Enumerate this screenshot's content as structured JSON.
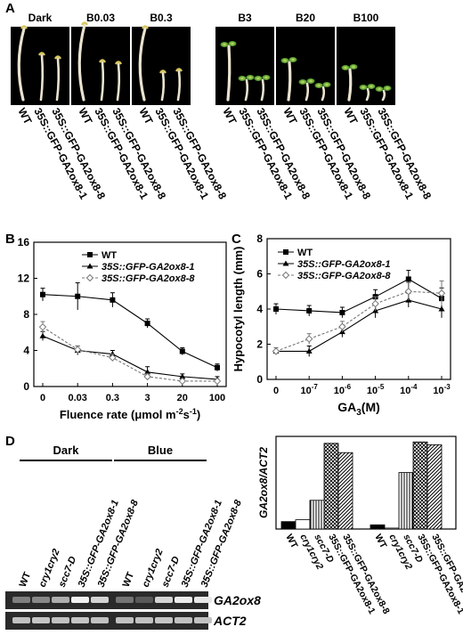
{
  "figure": {
    "panel_letters": {
      "a": "A",
      "b": "B",
      "c": "C",
      "d": "D"
    }
  },
  "panel_a": {
    "conditions": [
      "Dark",
      "B0.03",
      "B0.3",
      "B3",
      "B20",
      "B100"
    ],
    "genotypes": [
      "WT",
      "35S::GFP-GA2ox8-1",
      "35S::GFP-GA2ox8-8"
    ]
  },
  "chart_data": [
    {
      "type": "line",
      "panel": "B",
      "categories": [
        "0",
        "0.03",
        "0.3",
        "3",
        "20",
        "100"
      ],
      "xlabel": "Fluence rate (μmol m-2s-1)",
      "ylabel": "",
      "ylim": [
        0,
        16
      ],
      "yticks": [
        "0",
        "4",
        "8",
        "12",
        "16"
      ],
      "legend_position": "top-right",
      "series": [
        {
          "name": "WT",
          "marker": "filled-square",
          "values": [
            10.2,
            10.0,
            9.6,
            7.0,
            3.9,
            2.1
          ],
          "errors": [
            0.7,
            1.5,
            0.8,
            0.5,
            0.4,
            0.4
          ]
        },
        {
          "name": "35S::GFP-GA2ox8-1",
          "marker": "filled-triangle",
          "values": [
            5.6,
            4.0,
            3.6,
            1.6,
            1.1,
            0.8
          ],
          "errors": [
            0.5,
            0.5,
            0.4,
            0.6,
            0.3,
            0.3
          ]
        },
        {
          "name": "35S::GFP-GA2ox8-8",
          "marker": "open-diamond",
          "values": [
            6.6,
            4.1,
            3.2,
            1.1,
            0.6,
            0.6
          ],
          "errors": [
            0.6,
            0.4,
            0.4,
            0.3,
            0.2,
            0.2
          ]
        }
      ]
    },
    {
      "type": "line",
      "panel": "C",
      "categories": [
        "0",
        "10-7",
        "10-6",
        "10-5",
        "10-4",
        "10-3"
      ],
      "xlabel": "GA3(M)",
      "ylabel": "Hypocotyl length (mm)",
      "ylim": [
        0,
        8
      ],
      "yticks": [
        "0",
        "2",
        "4",
        "6",
        "8"
      ],
      "legend_position": "top-left",
      "series": [
        {
          "name": "WT",
          "marker": "filled-square",
          "values": [
            4.0,
            3.9,
            3.8,
            4.7,
            5.7,
            4.6
          ],
          "errors": [
            0.3,
            0.3,
            0.3,
            0.4,
            0.5,
            0.6
          ]
        },
        {
          "name": "35S::GFP-GA2ox8-1",
          "marker": "filled-triangle",
          "values": [
            1.6,
            1.6,
            2.7,
            3.9,
            4.5,
            4.0
          ],
          "errors": [
            0.2,
            0.3,
            0.3,
            0.4,
            0.4,
            0.5
          ]
        },
        {
          "name": "35S::GFP-GA2ox8-8",
          "marker": "open-diamond",
          "values": [
            1.6,
            2.3,
            3.0,
            4.3,
            5.0,
            4.9
          ],
          "errors": [
            0.2,
            0.3,
            0.3,
            0.4,
            0.5,
            0.7
          ]
        }
      ]
    },
    {
      "type": "bar",
      "panel": "D",
      "categories": [
        "WT",
        "cry1cry2",
        "scc7-D",
        "35S::GFP-GA2ox8-1",
        "35S::GFP-GA2ox8-8"
      ],
      "ylabel": "GA2ox8/ACT2",
      "groups": [
        {
          "name": "Dark",
          "values": [
            0.16,
            0.2,
            0.62,
            1.85,
            1.65
          ]
        },
        {
          "name": "Blue",
          "values": [
            0.09,
            0.02,
            1.22,
            1.88,
            1.82
          ]
        }
      ],
      "fills": [
        "solid-black",
        "white",
        "vertical-stripes",
        "cross-hatch",
        "diagonal-hatch"
      ]
    }
  ],
  "panel_d_gel": {
    "groups": [
      "Dark",
      "Blue"
    ],
    "lanes": [
      "WT",
      "cry1cry2",
      "scc7-D",
      "35S::GFP-GA2ox8-1",
      "35S::GFP-GA2ox8-8"
    ],
    "rows": [
      "GA2ox8",
      "ACT2"
    ],
    "ga2ox8_intensity": [
      0.35,
      0.4,
      0.6,
      0.95,
      0.8,
      0.3,
      0.15,
      0.8,
      0.92,
      0.9
    ],
    "act2_intensity": [
      0.7,
      0.72,
      0.7,
      0.72,
      0.7,
      0.7,
      0.7,
      0.72,
      0.7,
      0.7
    ]
  }
}
